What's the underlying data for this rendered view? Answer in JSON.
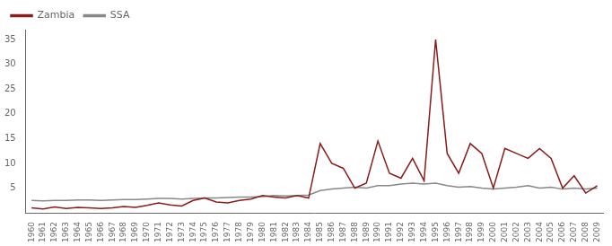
{
  "chart_data": {
    "type": "line",
    "x": [
      1960,
      1961,
      1962,
      1963,
      1964,
      1965,
      1966,
      1967,
      1968,
      1969,
      1970,
      1971,
      1972,
      1973,
      1974,
      1975,
      1976,
      1977,
      1978,
      1979,
      1980,
      1981,
      1982,
      1983,
      1984,
      1985,
      1986,
      1987,
      1988,
      1989,
      1990,
      1991,
      1992,
      1993,
      1994,
      1995,
      1996,
      1997,
      1998,
      1999,
      2000,
      2001,
      2002,
      2003,
      2004,
      2005,
      2006,
      2007,
      2008,
      2009
    ],
    "series": [
      {
        "name": "Zambia",
        "color": "#8B1A1A",
        "values": [
          1.0,
          0.8,
          1.2,
          0.9,
          1.1,
          1.0,
          0.9,
          1.0,
          1.3,
          1.1,
          1.5,
          2.0,
          1.6,
          1.4,
          2.5,
          3.0,
          2.2,
          2.0,
          2.5,
          2.8,
          3.5,
          3.2,
          3.0,
          3.5,
          3.0,
          14.0,
          10.0,
          9.0,
          5.0,
          6.0,
          14.5,
          8.0,
          7.0,
          11.0,
          6.5,
          35.0,
          12.0,
          8.0,
          14.0,
          12.0,
          5.0,
          13.0,
          12.0,
          11.0,
          13.0,
          11.0,
          5.0,
          7.5,
          4.0,
          5.5
        ]
      },
      {
        "name": "SSA",
        "color": "#888888",
        "values": [
          2.5,
          2.4,
          2.5,
          2.5,
          2.6,
          2.6,
          2.5,
          2.6,
          2.7,
          2.7,
          2.8,
          2.9,
          2.9,
          2.8,
          2.9,
          3.0,
          3.0,
          3.1,
          3.2,
          3.2,
          3.3,
          3.5,
          3.4,
          3.5,
          3.6,
          4.5,
          4.8,
          5.0,
          5.2,
          5.0,
          5.5,
          5.5,
          5.8,
          6.0,
          5.8,
          6.0,
          5.5,
          5.2,
          5.3,
          5.0,
          4.8,
          5.0,
          5.2,
          5.5,
          5.0,
          5.2,
          4.8,
          5.0,
          4.8,
          5.0
        ]
      }
    ],
    "xlim": [
      1959.5,
      2009.5
    ],
    "xticks": [
      1960,
      1961,
      1962,
      1963,
      1964,
      1965,
      1966,
      1967,
      1968,
      1969,
      1970,
      1971,
      1972,
      1973,
      1974,
      1975,
      1976,
      1977,
      1978,
      1979,
      1980,
      1981,
      1982,
      1983,
      1984,
      1985,
      1986,
      1987,
      1988,
      1989,
      1990,
      1991,
      1992,
      1993,
      1994,
      1995,
      1996,
      1997,
      1998,
      1999,
      2000,
      2001,
      2002,
      2003,
      2004,
      2005,
      2006,
      2007,
      2008,
      2009
    ],
    "ylim": [
      0,
      37
    ],
    "yticks": [
      5,
      10,
      15,
      20,
      25,
      30,
      35
    ],
    "grid": false,
    "legend": "upper left"
  }
}
